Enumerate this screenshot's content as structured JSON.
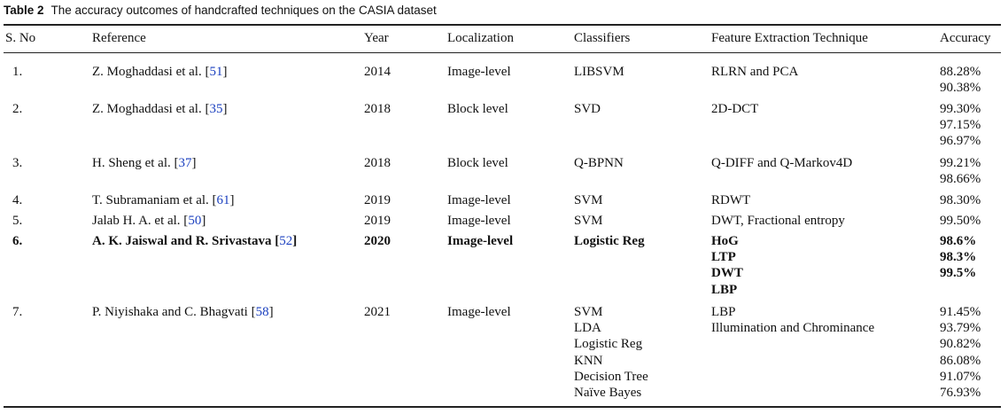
{
  "caption": {
    "label": "Table 2",
    "text": "The accuracy outcomes of handcrafted techniques on the CASIA dataset"
  },
  "headers": {
    "sno": "S. No",
    "reference": "Reference",
    "year": "Year",
    "localization": "Localization",
    "classifiers": "Classifiers",
    "feature": "Feature Extraction Technique",
    "accuracy": "Accuracy"
  },
  "rows": [
    {
      "sno": "1.",
      "ref_text": "Z. Moghaddasi et al. [",
      "ref_num": "51",
      "ref_close": "]",
      "year": "2014",
      "localization": "Image-level",
      "classifiers": [
        "LIBSVM"
      ],
      "features": [
        "RLRN and PCA"
      ],
      "accuracy": [
        "88.28%",
        "90.38%"
      ],
      "bold": false
    },
    {
      "sno": "2.",
      "ref_text": "Z. Moghaddasi et al. [",
      "ref_num": "35",
      "ref_close": "]",
      "year": "2018",
      "localization": "Block level",
      "classifiers": [
        "SVD"
      ],
      "features": [
        "2D-DCT"
      ],
      "accuracy": [
        "99.30%",
        "97.15%",
        "96.97%"
      ],
      "bold": false
    },
    {
      "sno": "3.",
      "ref_text": "H. Sheng et al. [",
      "ref_num": "37",
      "ref_close": "]",
      "year": "2018",
      "localization": "Block level",
      "classifiers": [
        "Q-BPNN"
      ],
      "features": [
        "Q-DIFF and Q-Markov4D"
      ],
      "accuracy": [
        "99.21%",
        "98.66%"
      ],
      "bold": false
    },
    {
      "sno": "4.",
      "ref_text": "T. Subramaniam et al. [",
      "ref_num": "61",
      "ref_close": "]",
      "year": "2019",
      "localization": "Image-level",
      "classifiers": [
        "SVM"
      ],
      "features": [
        "RDWT"
      ],
      "accuracy": [
        "98.30%"
      ],
      "bold": false
    },
    {
      "sno": "5.",
      "ref_text": "Jalab H. A. et al. [",
      "ref_num": "50",
      "ref_close": "]",
      "year": "2019",
      "localization": "Image-level",
      "classifiers": [
        "SVM"
      ],
      "features": [
        "DWT, Fractional entropy"
      ],
      "accuracy": [
        "99.50%"
      ],
      "bold": false
    },
    {
      "sno": "6.",
      "ref_text": "A. K. Jaiswal and R. Srivastava [",
      "ref_num": "52",
      "ref_close": "]",
      "year": "2020",
      "localization": "Image-level",
      "classifiers": [
        "Logistic Reg"
      ],
      "features": [
        "HoG",
        "LTP",
        "DWT",
        "LBP"
      ],
      "accuracy": [
        "98.6%",
        "98.3%",
        "99.5%"
      ],
      "bold": true
    },
    {
      "sno": "7.",
      "ref_text": "P. Niyishaka and C. Bhagvati [",
      "ref_num": "58",
      "ref_close": "]",
      "year": "2021",
      "localization": "Image-level",
      "classifiers": [
        "SVM",
        "LDA",
        "Logistic Reg",
        "KNN",
        "Decision Tree",
        "Naïve Bayes"
      ],
      "features": [
        "LBP",
        "Illumination and Chrominance"
      ],
      "accuracy": [
        "91.45%",
        "93.79%",
        "90.82%",
        "86.08%",
        "91.07%",
        "76.93%"
      ],
      "bold": false
    }
  ]
}
